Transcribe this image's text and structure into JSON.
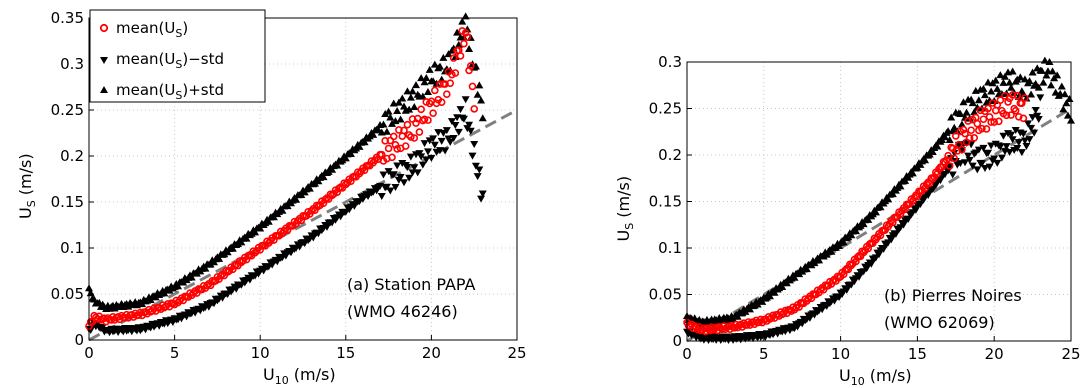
{
  "colors": {
    "mean": "#ff0000",
    "std": "#000000",
    "fit": "#808080"
  },
  "legend": {
    "mean_label": "mean(U",
    "mean_sub": "S",
    "mean_tail": ")",
    "minus_label": "mean(U",
    "minus_sub": "S",
    "minus_tail": ")−std",
    "plus_label": "mean(U",
    "plus_sub": "S",
    "plus_tail": ")+std"
  },
  "chart_data": [
    {
      "type": "scatter",
      "panel": "left",
      "xlabel_main": "U",
      "xlabel_sub": "10",
      "xlabel_tail": " (m/s)",
      "ylabel_main": "U",
      "ylabel_sub": "S",
      "ylabel_tail": " (m/s)",
      "annotation_line1": "(a) Station PAPA",
      "annotation_line2": "(WMO 46246)",
      "xlim": [
        0,
        25
      ],
      "ylim": [
        0,
        0.35
      ],
      "xticks": [
        0,
        5,
        10,
        15,
        20,
        25
      ],
      "yticks": [
        0,
        0.05,
        0.1,
        0.15,
        0.2,
        0.25,
        0.3,
        0.35
      ],
      "ytick_labels": [
        "0",
        "0.05",
        "0.1",
        "0.15",
        "0.2",
        "0.25",
        "0.3",
        "0.35"
      ],
      "grid": true,
      "legend_position": "top-left",
      "fit_line": {
        "x": [
          0,
          25
        ],
        "y": [
          0,
          0.25
        ]
      },
      "mean_anchors": {
        "x": [
          0,
          0.3,
          1,
          3,
          5,
          7,
          10,
          13,
          16,
          19,
          20,
          21,
          22,
          22.5
        ],
        "y": [
          0.015,
          0.025,
          0.022,
          0.028,
          0.04,
          0.06,
          0.1,
          0.14,
          0.185,
          0.23,
          0.255,
          0.28,
          0.335,
          0.26
        ]
      },
      "minus_anchors": {
        "x": [
          0,
          0.3,
          1,
          3,
          5,
          7,
          10,
          13,
          16,
          19,
          20,
          21,
          22,
          23
        ],
        "y": [
          0.01,
          0.018,
          0.01,
          0.012,
          0.022,
          0.038,
          0.075,
          0.112,
          0.155,
          0.19,
          0.21,
          0.22,
          0.25,
          0.155
        ]
      },
      "plus_anchors": {
        "x": [
          0,
          0.3,
          1,
          3,
          5,
          7,
          10,
          13,
          16,
          19,
          20,
          21,
          22,
          23
        ],
        "y": [
          0.055,
          0.042,
          0.035,
          0.04,
          0.058,
          0.082,
          0.123,
          0.168,
          0.215,
          0.265,
          0.285,
          0.3,
          0.345,
          0.25
        ]
      }
    },
    {
      "type": "scatter",
      "panel": "right",
      "xlabel_main": "U",
      "xlabel_sub": "10",
      "xlabel_tail": " (m/s)",
      "ylabel_main": "U",
      "ylabel_sub": "S",
      "ylabel_tail": " (m/s)",
      "annotation_line1": "(b) Pierres Noires",
      "annotation_line2": "(WMO 62069)",
      "xlim": [
        0,
        25
      ],
      "ylim": [
        0,
        0.3
      ],
      "xticks": [
        0,
        5,
        10,
        15,
        20,
        25
      ],
      "yticks": [
        0,
        0.05,
        0.1,
        0.15,
        0.2,
        0.25,
        0.3
      ],
      "ytick_labels": [
        "0",
        "0.05",
        "0.1",
        "0.15",
        "0.2",
        "0.25",
        "0.3"
      ],
      "grid": true,
      "fit_line": {
        "x": [
          0,
          25
        ],
        "y": [
          0,
          0.25
        ]
      },
      "mean_anchors": {
        "x": [
          0,
          1,
          3,
          5,
          7,
          10,
          12,
          14,
          16,
          18,
          19,
          20,
          21,
          22
        ],
        "y": [
          0.018,
          0.012,
          0.015,
          0.022,
          0.035,
          0.07,
          0.105,
          0.14,
          0.175,
          0.22,
          0.235,
          0.245,
          0.255,
          0.25
        ]
      },
      "minus_anchors": {
        "x": [
          0,
          1,
          3,
          5,
          7,
          10,
          12,
          14,
          16,
          18,
          19,
          20,
          21,
          22,
          23
        ],
        "y": [
          0.01,
          0.003,
          0.003,
          0.006,
          0.015,
          0.05,
          0.085,
          0.125,
          0.165,
          0.205,
          0.195,
          0.2,
          0.215,
          0.215,
          0.25
        ]
      },
      "plus_anchors": {
        "x": [
          0,
          1,
          3,
          5,
          7,
          10,
          12,
          14,
          16,
          18,
          19,
          20,
          21,
          22,
          23.5,
          25
        ],
        "y": [
          0.025,
          0.02,
          0.025,
          0.045,
          0.07,
          0.105,
          0.135,
          0.17,
          0.205,
          0.245,
          0.26,
          0.27,
          0.28,
          0.27,
          0.293,
          0.245
        ]
      }
    }
  ]
}
